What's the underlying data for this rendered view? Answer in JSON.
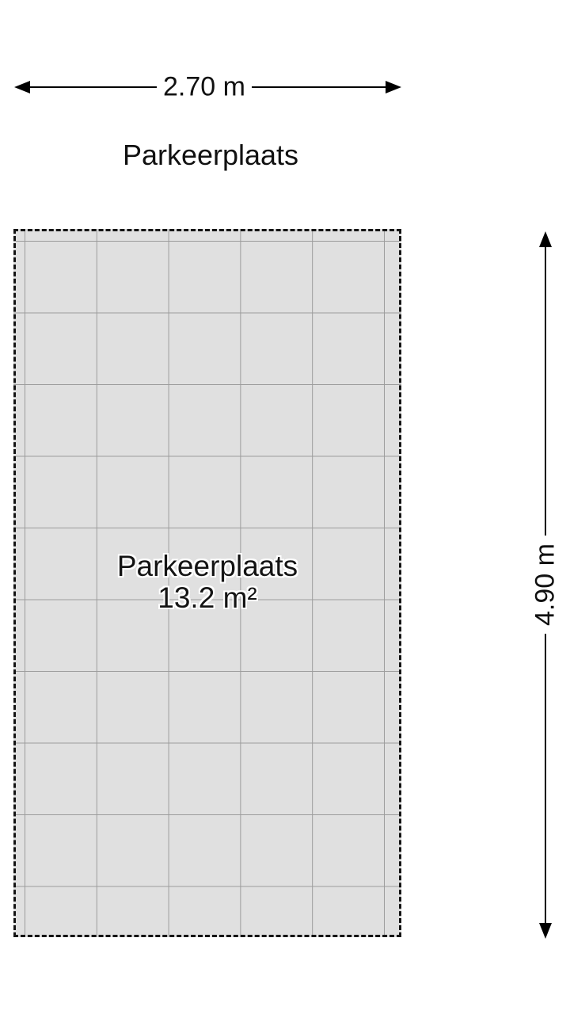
{
  "page": {
    "background_color": "#ffffff"
  },
  "title": {
    "text": "Parkeerplaats"
  },
  "dimensions": {
    "width": {
      "label": "2.70 m"
    },
    "height": {
      "label": "4.90 m"
    }
  },
  "room": {
    "name": "Parkeerplaats",
    "area": "13.2 m²",
    "fill_color": "#e0e0e0",
    "grid_line_color": "#9c9c9c",
    "border_color": "#141414",
    "border_style": "dashed"
  }
}
